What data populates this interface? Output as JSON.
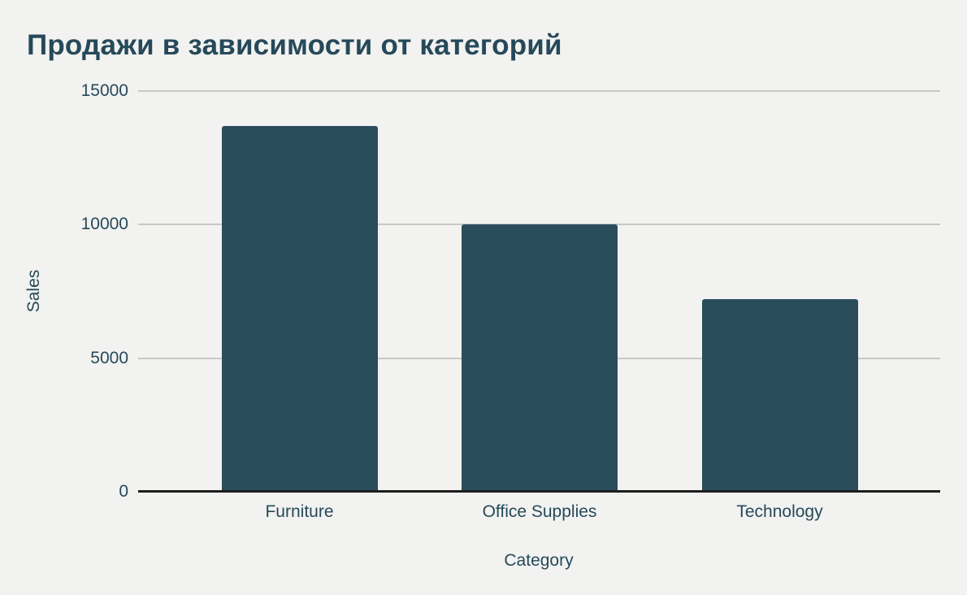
{
  "chart_data": {
    "type": "bar",
    "title": "Продажи в зависимости от категорий",
    "xlabel": "Category",
    "ylabel": "Sales",
    "categories": [
      "Furniture",
      "Office Supplies",
      "Technology"
    ],
    "values": [
      13700,
      10000,
      7200
    ],
    "ylim": [
      0,
      15000
    ],
    "yticks": [
      0,
      5000,
      10000,
      15000
    ],
    "grid": "horizontal gridlines on",
    "legend": "none",
    "colors": {
      "background": "#f2f2f0",
      "bar": "#2a4d5c",
      "text": "#26495a",
      "gridline": "#c8c8c6",
      "axis_line": "#1d1d1b"
    }
  }
}
